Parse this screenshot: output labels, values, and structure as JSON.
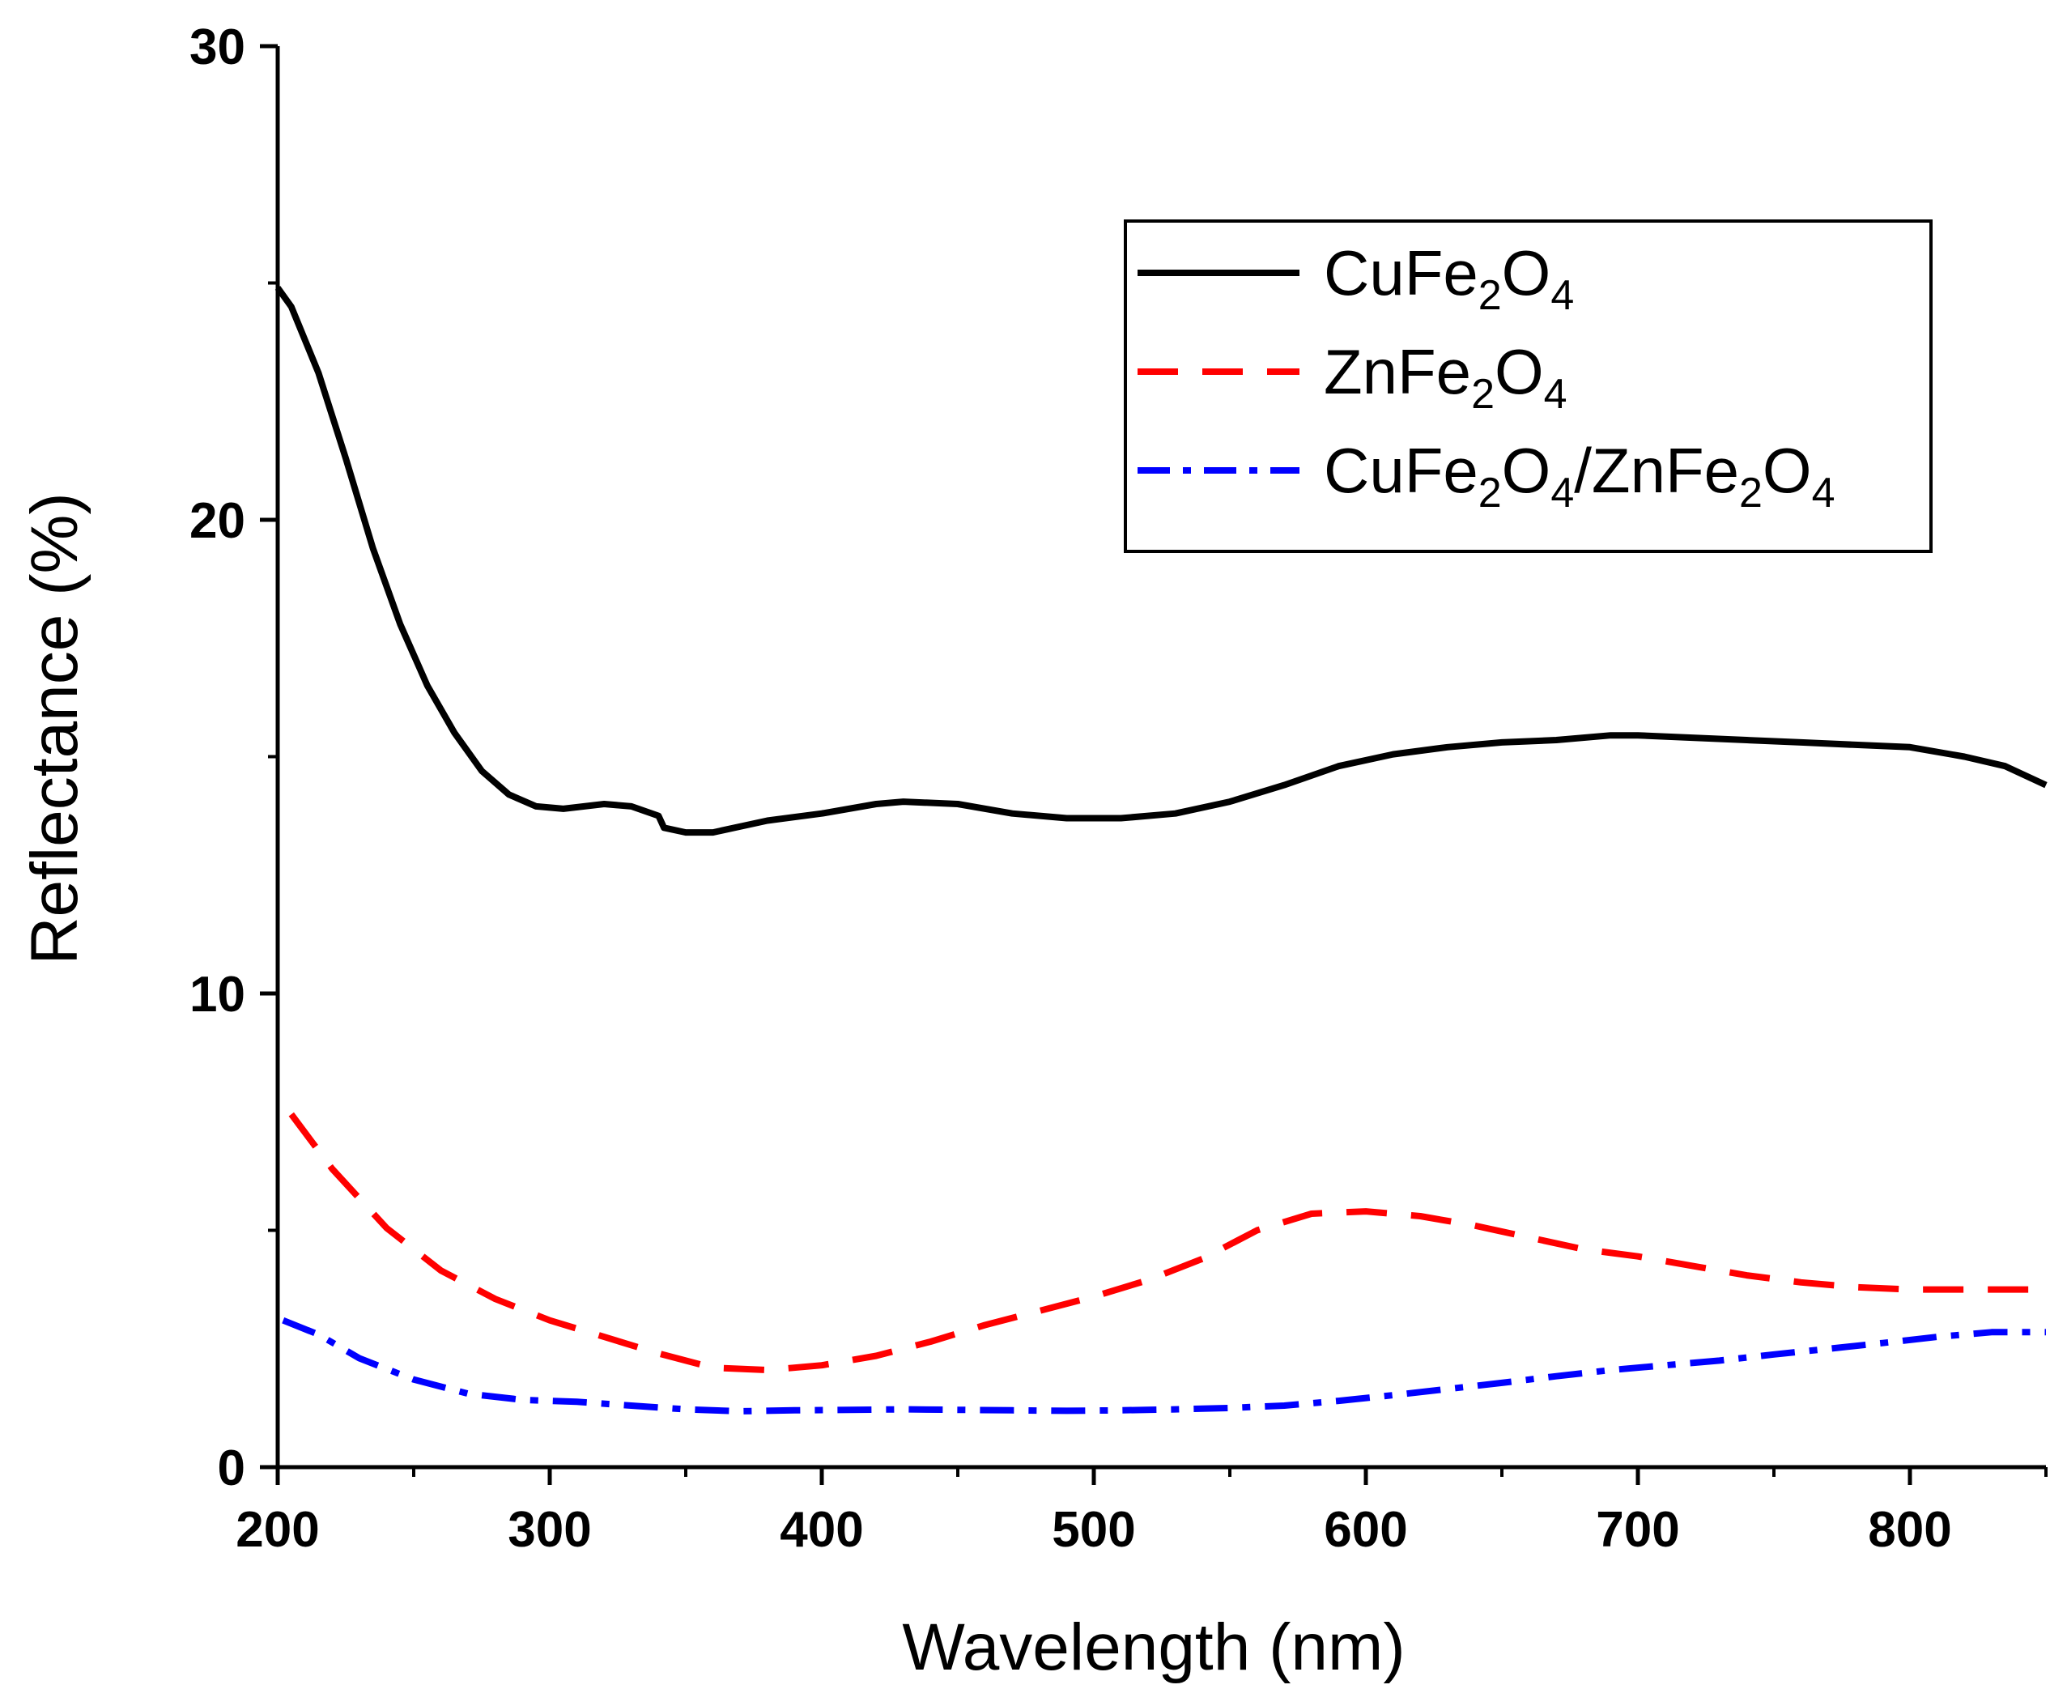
{
  "chart_data": {
    "type": "line",
    "title": "",
    "xlabel": "Wavelength (nm)",
    "ylabel": "Reflectance (%)",
    "xlim": [
      200,
      850
    ],
    "ylim": [
      0,
      30
    ],
    "x_ticks": [
      200,
      300,
      400,
      500,
      600,
      700,
      800
    ],
    "x_tick_labels": [
      "200",
      "300",
      "400",
      "500",
      "600",
      "700",
      "800"
    ],
    "y_ticks": [
      0,
      10,
      20,
      30
    ],
    "y_tick_labels": [
      "0",
      "10",
      "20",
      "30"
    ],
    "legend_position": "top-right",
    "series": [
      {
        "name": "CuFe2O4",
        "label_parts": [
          "CuFe",
          "2",
          "O",
          "4"
        ],
        "color": "#000000",
        "style": "solid",
        "x": [
          200,
          205,
          215,
          225,
          235,
          245,
          255,
          265,
          275,
          285,
          295,
          305,
          320,
          330,
          340,
          342,
          350,
          360,
          380,
          400,
          420,
          430,
          450,
          470,
          490,
          510,
          530,
          550,
          570,
          590,
          610,
          630,
          650,
          670,
          690,
          700,
          720,
          740,
          760,
          780,
          800,
          820,
          835,
          850
        ],
        "y": [
          24.9,
          24.5,
          23.1,
          21.3,
          19.4,
          17.8,
          16.5,
          15.5,
          14.7,
          14.2,
          13.95,
          13.9,
          14.0,
          13.95,
          13.75,
          13.5,
          13.4,
          13.4,
          13.65,
          13.8,
          14.0,
          14.05,
          14.0,
          13.8,
          13.7,
          13.7,
          13.8,
          14.05,
          14.4,
          14.8,
          15.05,
          15.2,
          15.3,
          15.35,
          15.45,
          15.45,
          15.4,
          15.35,
          15.3,
          15.25,
          15.2,
          15.0,
          14.8,
          14.4
        ]
      },
      {
        "name": "ZnFe2O4",
        "label_parts": [
          "ZnFe",
          "2",
          "O",
          "4"
        ],
        "color": "#ff0000",
        "style": "dashed",
        "x": [
          205,
          220,
          240,
          260,
          280,
          300,
          320,
          340,
          360,
          380,
          400,
          420,
          440,
          460,
          480,
          500,
          520,
          540,
          560,
          580,
          600,
          620,
          640,
          660,
          680,
          700,
          720,
          740,
          760,
          780,
          800,
          820,
          850
        ],
        "y": [
          7.45,
          6.3,
          5.05,
          4.15,
          3.55,
          3.1,
          2.75,
          2.4,
          2.1,
          2.05,
          2.15,
          2.35,
          2.65,
          3.0,
          3.3,
          3.6,
          3.95,
          4.4,
          5.0,
          5.35,
          5.4,
          5.3,
          5.1,
          4.85,
          4.6,
          4.45,
          4.25,
          4.05,
          3.9,
          3.8,
          3.75,
          3.75,
          3.75
        ]
      },
      {
        "name": "CuFe2O4/ZnFe2O4",
        "label_parts": [
          "CuFe",
          "2",
          "O",
          "4",
          "/ZnFe",
          "2",
          "O",
          "4"
        ],
        "color": "#0000ff",
        "style": "dashdot",
        "x": [
          202,
          215,
          230,
          250,
          270,
          290,
          310,
          330,
          350,
          370,
          390,
          410,
          430,
          450,
          470,
          490,
          510,
          530,
          550,
          570,
          590,
          610,
          630,
          650,
          670,
          690,
          710,
          730,
          750,
          770,
          790,
          810,
          830,
          850
        ],
        "y": [
          3.1,
          2.8,
          2.3,
          1.85,
          1.55,
          1.42,
          1.38,
          1.3,
          1.22,
          1.18,
          1.2,
          1.21,
          1.22,
          1.21,
          1.2,
          1.19,
          1.2,
          1.22,
          1.25,
          1.3,
          1.4,
          1.52,
          1.65,
          1.78,
          1.92,
          2.05,
          2.15,
          2.25,
          2.38,
          2.5,
          2.62,
          2.75,
          2.85,
          2.85
        ]
      }
    ]
  }
}
